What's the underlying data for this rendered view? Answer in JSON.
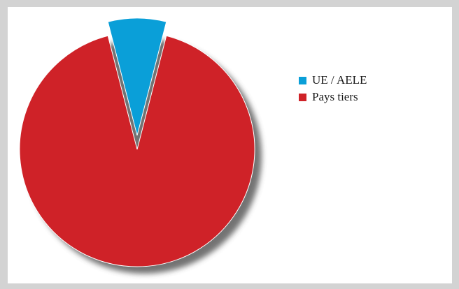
{
  "chart_data": {
    "type": "pie",
    "title": "",
    "legend_position": "right",
    "slices": [
      {
        "label": "UE / AELE",
        "value": 8,
        "color": "#0a9fd8"
      },
      {
        "label": "Pays tiers",
        "value": 92,
        "color": "#cf2228"
      }
    ]
  }
}
